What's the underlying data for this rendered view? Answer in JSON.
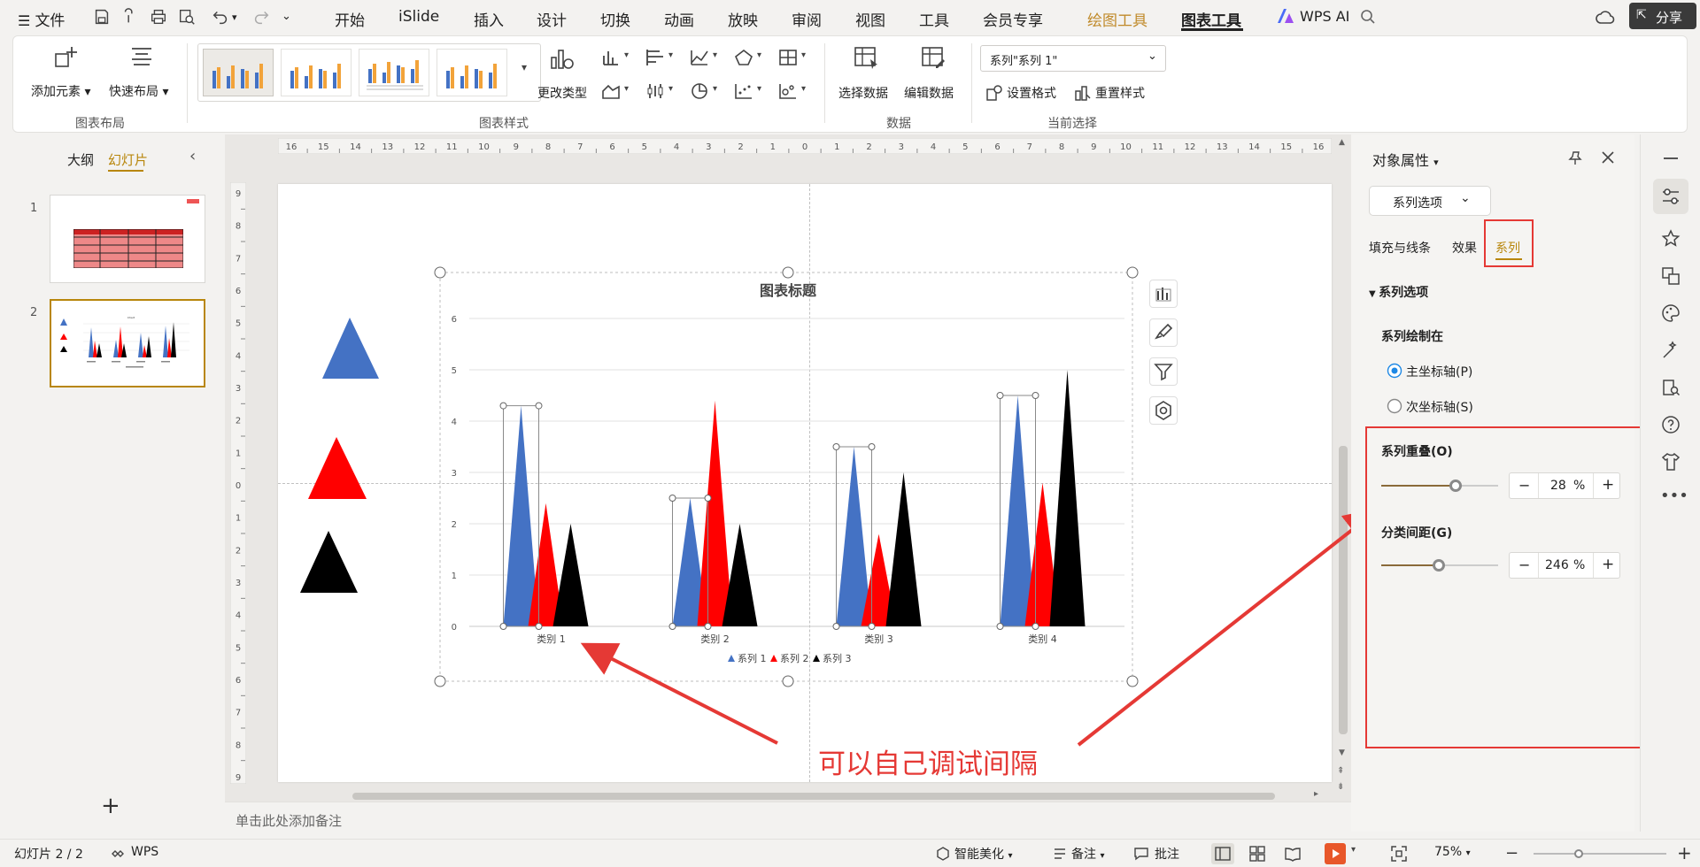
{
  "menubar": {
    "file": "文件",
    "tabs": [
      "开始",
      "iSlide",
      "插入",
      "设计",
      "切换",
      "动画",
      "放映",
      "审阅",
      "视图",
      "工具",
      "会员专享",
      "绘图工具",
      "图表工具"
    ],
    "ai": "WPS AI",
    "share": "分享"
  },
  "ribbon": {
    "add_element": "添加元素",
    "quick_layout": "快速布局",
    "group_layout": "图表布局",
    "group_style": "图表样式",
    "change_type": "更改类型",
    "select_data": "选择数据",
    "edit_data": "编辑数据",
    "group_data": "数据",
    "series_select": "系列\"系列 1\"",
    "set_format": "设置格式",
    "reset_style": "重置样式",
    "group_current": "当前选择"
  },
  "leftpanel": {
    "tab_outline": "大纲",
    "tab_slides": "幻灯片",
    "slide_numbers": [
      "1",
      "2"
    ]
  },
  "ruler": {
    "h": [
      "16",
      "15",
      "14",
      "13",
      "12",
      "11",
      "10",
      "9",
      "8",
      "7",
      "6",
      "5",
      "4",
      "3",
      "2",
      "1",
      "0",
      "1",
      "2",
      "3",
      "4",
      "5",
      "6",
      "7",
      "8",
      "9",
      "10",
      "11",
      "12",
      "13",
      "14",
      "15",
      "16"
    ],
    "v": [
      "9",
      "8",
      "7",
      "6",
      "5",
      "4",
      "3",
      "2",
      "1",
      "0",
      "1",
      "2",
      "3",
      "4",
      "5",
      "6",
      "7",
      "8",
      "9"
    ]
  },
  "chart_data": {
    "type": "bar",
    "title": "图表标题",
    "categories": [
      "类别 1",
      "类别 2",
      "类别 3",
      "类别 4"
    ],
    "series": [
      {
        "name": "系列 1",
        "color": "#4472c4",
        "values": [
          4.3,
          2.5,
          3.5,
          4.5
        ]
      },
      {
        "name": "系列 2",
        "color": "#ff0000",
        "values": [
          2.4,
          4.4,
          1.8,
          2.8
        ]
      },
      {
        "name": "系列 3",
        "color": "#000000",
        "values": [
          2,
          2,
          3,
          5
        ]
      }
    ],
    "ylim": [
      0,
      6
    ],
    "yticks": [
      "0",
      "1",
      "2",
      "3",
      "4",
      "5",
      "6"
    ],
    "bar_shape": "triangle",
    "legend": "bottom"
  },
  "annotation": "可以自己调试间隔",
  "notes_placeholder": "单击此处添加备注",
  "pane": {
    "title": "对象属性",
    "dropdown": "系列选项",
    "tabs": [
      "填充与线条",
      "效果",
      "系列"
    ],
    "section": "系列选项",
    "plot_on": "系列绘制在",
    "primary_axis": "主坐标轴(P)",
    "secondary_axis": "次坐标轴(S)",
    "overlap_label": "系列重叠(O)",
    "overlap_value": "28",
    "overlap_unit": "%",
    "overlap_percent": 28,
    "gap_label": "分类间距(G)",
    "gap_value": "246",
    "gap_unit": "%",
    "gap_percent": 246
  },
  "status": {
    "slide": "幻灯片 2 / 2",
    "wps": "WPS",
    "beautify": "智能美化",
    "notes": "备注",
    "comments": "批注",
    "zoom": "75%"
  },
  "colors": {
    "accent": "#b8860b",
    "highlight": "#e53935",
    "blue": "#4472c4",
    "red": "#ff0000",
    "black": "#000000",
    "draw_tools": "#c08a2a"
  }
}
